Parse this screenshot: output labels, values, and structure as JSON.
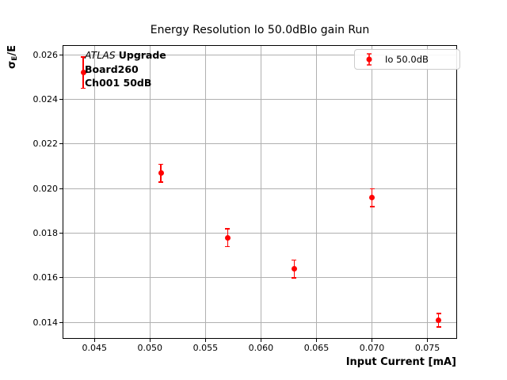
{
  "colors": {
    "accent": "#ff0000",
    "grid": "#b0b0b0",
    "spine": "#000000",
    "text": "#000000",
    "background": "#ffffff",
    "legend_border": "#cccccc"
  },
  "chart_data": {
    "type": "scatter",
    "title": "Energy Resolution Io 50.0dBIo gain Run",
    "xlabel": "Input Current [mA]",
    "ylabel": "σE/E",
    "grid": true,
    "legend_position": "upper right",
    "xlim": [
      0.0422,
      0.0776
    ],
    "ylim": [
      0.0133,
      0.0264
    ],
    "xtick_values": [
      0.045,
      0.05,
      0.055,
      0.06,
      0.065,
      0.07,
      0.075
    ],
    "xtick_labels": [
      "0.045",
      "0.050",
      "0.055",
      "0.060",
      "0.065",
      "0.070",
      "0.075"
    ],
    "ytick_values": [
      0.014,
      0.016,
      0.018,
      0.02,
      0.022,
      0.024,
      0.026
    ],
    "ytick_labels": [
      "0.014",
      "0.016",
      "0.018",
      "0.020",
      "0.022",
      "0.024",
      "0.026"
    ],
    "series": [
      {
        "name": "Io 50.0dB",
        "marker": "circle-with-errorbar",
        "color": "#ff0000",
        "x": [
          0.044,
          0.051,
          0.057,
          0.063,
          0.07,
          0.076
        ],
        "y": [
          0.0252,
          0.0207,
          0.0178,
          0.0164,
          0.0196,
          0.0141
        ],
        "yerr": [
          0.0007,
          0.0004,
          0.0004,
          0.0004,
          0.0004,
          0.0003
        ]
      }
    ],
    "legend": {
      "label": "Io 50.0dB"
    }
  },
  "ylabel_parts": {
    "sigma": "σ",
    "subscript": "E",
    "rest": "/E"
  },
  "annotation": {
    "experiment": "ATLAS",
    "line1_rest": "Upgrade",
    "line2": "Board260",
    "line3": "Ch001 50dB"
  }
}
